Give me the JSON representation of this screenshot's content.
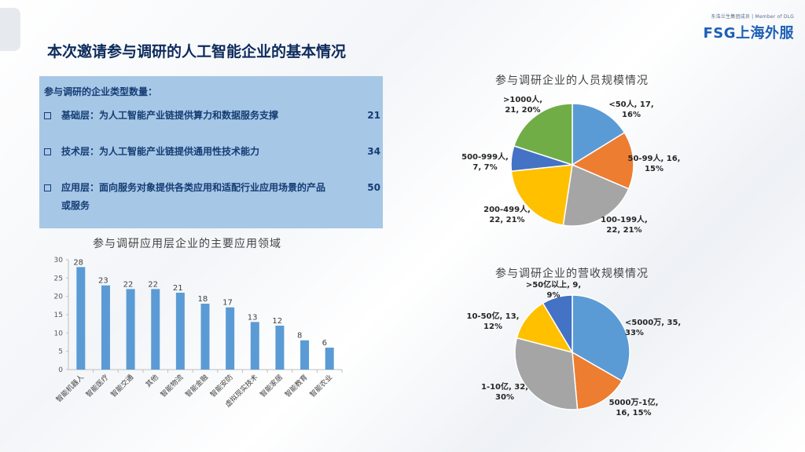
{
  "logo": {
    "tagline": "东浩兰生集团成员 | Member of DLG",
    "brand": "FSG上海外服"
  },
  "title": "本次邀请参与调研的人工智能企业的基本情况",
  "info": {
    "heading": "参与调研的企业类型数量：",
    "rows": [
      {
        "label": "基础层：为人工智能产业链提供算力和数据服务支撑",
        "value": "21"
      },
      {
        "label": "技术层：为人工智能产业链提供通用性技术能力",
        "value": "34"
      },
      {
        "label": "应用层：面向服务对象提供各类应用和适配行业应用场景的产品或服务",
        "value": "50"
      }
    ]
  },
  "chart_data": [
    {
      "type": "bar",
      "title": "参与调研应用层企业的主要应用领域",
      "categories": [
        "智能机器人",
        "智能医疗",
        "智能交通",
        "其他",
        "智能物流",
        "智能金融",
        "智能安防",
        "虚拟现实技术",
        "智能家居",
        "智能教育",
        "智能农业"
      ],
      "values": [
        28,
        23,
        22,
        22,
        21,
        18,
        17,
        13,
        12,
        8,
        6
      ],
      "ylim": [
        0,
        30
      ],
      "yticks": [
        "0",
        "5",
        "10",
        "15",
        "20",
        "25",
        "30"
      ],
      "color": "#5b9bd5"
    },
    {
      "type": "pie",
      "title": "参与调研企业的人员规模情况",
      "slices": [
        {
          "label": "<50人",
          "value": 17,
          "pct": "16%",
          "color": "#5b9bd5",
          "text": "<50人, 17,\n16%"
        },
        {
          "label": "50-99人",
          "value": 16,
          "pct": "15%",
          "color": "#ed7d31",
          "text": "50-99人, 16,\n15%"
        },
        {
          "label": "100-199人",
          "value": 22,
          "pct": "21%",
          "color": "#a5a5a5",
          "text": "100-199人,\n22, 21%"
        },
        {
          "label": "200-499人",
          "value": 22,
          "pct": "21%",
          "color": "#ffc000",
          "text": "200-499人,\n22, 21%"
        },
        {
          "label": "500-999人",
          "value": 7,
          "pct": "7%",
          "color": "#4472c4",
          "text": "500-999人,\n7, 7%"
        },
        {
          "label": ">1000人",
          "value": 21,
          "pct": "20%",
          "color": "#70ad47",
          "text": ">1000人,\n21, 20%"
        }
      ]
    },
    {
      "type": "pie",
      "title": "参与调研企业的营收规模情况",
      "slices": [
        {
          "label": "<5000万",
          "value": 35,
          "pct": "33%",
          "color": "#5b9bd5",
          "text": "<5000万, 35,\n33%"
        },
        {
          "label": "5000万-1亿",
          "value": 16,
          "pct": "15%",
          "color": "#ed7d31",
          "text": "5000万-1亿,\n16, 15%"
        },
        {
          "label": "1-10亿",
          "value": 32,
          "pct": "30%",
          "color": "#a5a5a5",
          "text": "1-10亿, 32,\n30%"
        },
        {
          "label": "10-50亿",
          "value": 13,
          "pct": "12%",
          "color": "#ffc000",
          "text": "10-50亿, 13,\n12%"
        },
        {
          "label": ">50亿以上",
          "value": 9,
          "pct": "9%",
          "color": "#4472c4",
          "text": ">50亿以上, 9,\n9%"
        }
      ]
    }
  ]
}
